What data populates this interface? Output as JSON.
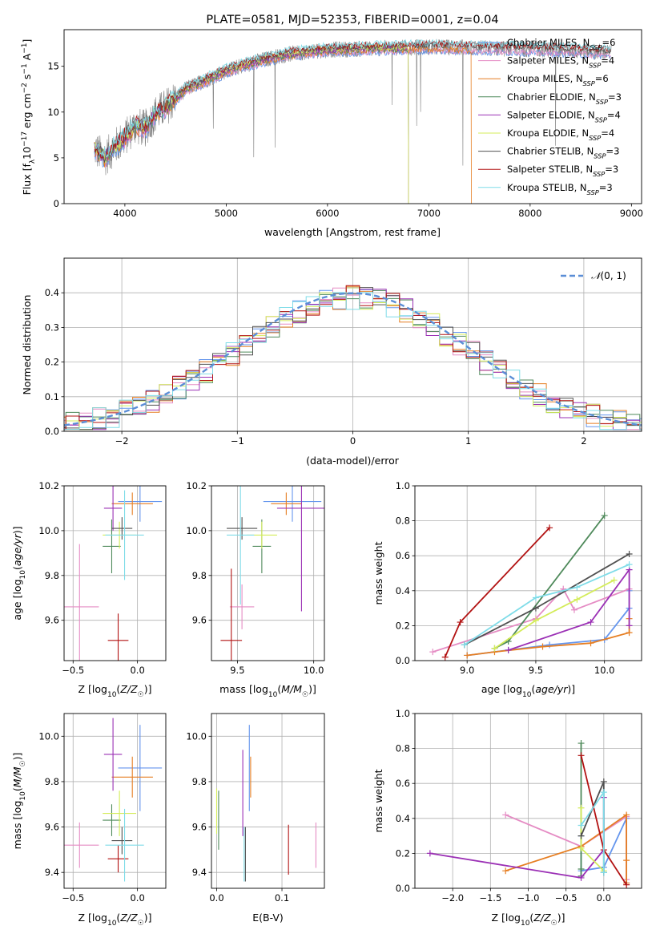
{
  "colors": {
    "chabrier_miles": "#6495ed",
    "salpeter_miles": "#e58cc4",
    "kroupa_miles": "#e67e22",
    "chabrier_elodie": "#4f8a5b",
    "salpeter_elodie": "#9b30b5",
    "kroupa_elodie": "#d4ec5a",
    "chabrier_stelib": "#505050",
    "salpeter_stelib": "#b21212",
    "kroupa_stelib": "#7fdce8",
    "normal": "#5b8ed6",
    "observed": "#808080"
  },
  "chart_data": [
    {
      "id": "spectrum",
      "type": "line",
      "title": "PLATE=0581, MJD=52353, FIBERID=0001, z=0.04",
      "xlabel": "wavelength [Angstrom, rest frame]",
      "ylabel": "Flux [f_λ10^-17 erg cm^-2 s^-1 A^-1]",
      "xlim": [
        3400,
        9100
      ],
      "ylim": [
        0,
        19
      ],
      "xticks": [
        "4000",
        "5000",
        "6000",
        "7000",
        "8000",
        "9000"
      ],
      "yticks": [
        "0",
        "5",
        "10",
        "15"
      ],
      "grid": false,
      "legend_position": "top-right",
      "legend": [
        "Chabrier MILES, N_SSP=6",
        "Salpeter MILES, N_SSP=4",
        "Kroupa MILES, N_SSP=6",
        "Chabrier ELODIE, N_SSP=3",
        "Salpeter ELODIE, N_SSP=4",
        "Kroupa ELODIE, N_SSP=4",
        "Chabrier STELIB, N_SSP=3",
        "Salpeter STELIB, N_SSP=3",
        "Kroupa STELIB, N_SSP=3"
      ],
      "series_keys": [
        "chabrier_miles",
        "salpeter_miles",
        "kroupa_miles",
        "chabrier_elodie",
        "salpeter_elodie",
        "kroupa_elodie",
        "chabrier_stelib",
        "salpeter_stelib",
        "kroupa_stelib"
      ],
      "continuum": {
        "x": [
          3700,
          3800,
          3900,
          4000,
          4100,
          4200,
          4300,
          4400,
          4500,
          4600,
          4800,
          5000,
          5200,
          5400,
          5600,
          5800,
          6000,
          6300,
          6600,
          7000,
          7500,
          8000,
          8500,
          8800
        ],
        "y": [
          6.0,
          5.0,
          6.2,
          7.2,
          8.5,
          8.2,
          9.8,
          10.5,
          11.5,
          12.5,
          13.5,
          14.5,
          15.2,
          15.8,
          16.3,
          16.6,
          16.8,
          16.9,
          17.0,
          17.1,
          17.0,
          16.9,
          16.7,
          16.5
        ]
      },
      "model_ranges": {
        "chabrier_miles": [
          3700,
          8800
        ],
        "salpeter_miles": [
          3700,
          8800
        ],
        "kroupa_miles": [
          3700,
          7420
        ],
        "chabrier_elodie": [
          3700,
          6800
        ],
        "salpeter_elodie": [
          3700,
          6800
        ],
        "kroupa_elodie": [
          3700,
          6800
        ],
        "chabrier_stelib": [
          3700,
          8800
        ],
        "salpeter_stelib": [
          3700,
          8800
        ],
        "kroupa_stelib": [
          3700,
          8800
        ]
      }
    },
    {
      "id": "residuals",
      "type": "histogram",
      "xlabel": "(data-model)/error",
      "ylabel": "Normed distribution",
      "xlim": [
        -2.5,
        2.5
      ],
      "ylim": [
        0,
        0.5
      ],
      "xticks": [
        "−2",
        "−1",
        "0",
        "1",
        "2"
      ],
      "yticks": [
        "0.0",
        "0.1",
        "0.2",
        "0.3",
        "0.4"
      ],
      "grid": true,
      "legend_position": "top-right",
      "legend": [
        "N(0,1)"
      ],
      "bins": 45,
      "reference": "normal distribution N(0,1)"
    },
    {
      "id": "age_vs_Z",
      "type": "scatter",
      "xlabel": "Z [log10(Z/Z☉)]",
      "ylabel": "age [log10(age/yr)]",
      "xlim": [
        -0.57,
        0.22
      ],
      "ylim": [
        9.42,
        10.2
      ],
      "xticks": [
        "−0.5",
        "0.0"
      ],
      "yticks": [
        "9.6",
        "9.8",
        "10.0",
        "10.2"
      ],
      "grid": true,
      "points": [
        {
          "key": "chabrier_miles",
          "x": 0.02,
          "y": 10.13,
          "xerr": 0.17,
          "yerr": 0.09
        },
        {
          "key": "salpeter_miles",
          "x": -0.45,
          "y": 9.66,
          "xerr": 0.15,
          "yerr": 0.28
        },
        {
          "key": "kroupa_miles",
          "x": -0.04,
          "y": 10.12,
          "xerr": 0.16,
          "yerr": 0.05
        },
        {
          "key": "chabrier_elodie",
          "x": -0.2,
          "y": 9.93,
          "xerr": 0.07,
          "yerr": 0.12
        },
        {
          "key": "salpeter_elodie",
          "x": -0.19,
          "y": 10.1,
          "xerr": 0.07,
          "yerr": 0.1
        },
        {
          "key": "kroupa_elodie",
          "x": -0.14,
          "y": 9.98,
          "xerr": 0.13,
          "yerr": 0.06
        },
        {
          "key": "chabrier_stelib",
          "x": -0.12,
          "y": 10.01,
          "xerr": 0.08,
          "yerr": 0.05
        },
        {
          "key": "salpeter_stelib",
          "x": -0.15,
          "y": 9.51,
          "xerr": 0.08,
          "yerr": 0.12
        },
        {
          "key": "kroupa_stelib",
          "x": -0.1,
          "y": 9.98,
          "xerr": 0.15,
          "yerr": 0.2
        }
      ]
    },
    {
      "id": "age_vs_mass",
      "type": "scatter",
      "xlabel": "mass [log10(M/M☉)]",
      "xlim": [
        9.33,
        10.07
      ],
      "ylim": [
        9.42,
        10.2
      ],
      "xticks": [
        "9.5",
        "10.0"
      ],
      "yticks": [
        "9.6",
        "9.8",
        "10.0",
        "10.2"
      ],
      "grid": true,
      "points": [
        {
          "key": "chabrier_miles",
          "x": 9.86,
          "y": 10.13,
          "xerr": 0.19,
          "yerr": 0.09
        },
        {
          "key": "salpeter_miles",
          "x": 9.53,
          "y": 9.66,
          "xerr": 0.08,
          "yerr": 0.1
        },
        {
          "key": "kroupa_miles",
          "x": 9.82,
          "y": 10.12,
          "xerr": 0.1,
          "yerr": 0.05
        },
        {
          "key": "chabrier_elodie",
          "x": 9.66,
          "y": 9.93,
          "xerr": 0.06,
          "yerr": 0.12
        },
        {
          "key": "salpeter_elodie",
          "x": 9.92,
          "y": 10.1,
          "xerr": 0.16,
          "yerr": 0.46
        },
        {
          "key": "kroupa_elodie",
          "x": 9.66,
          "y": 9.98,
          "xerr": 0.1,
          "yerr": 0.06
        },
        {
          "key": "chabrier_stelib",
          "x": 9.53,
          "y": 10.01,
          "xerr": 0.1,
          "yerr": 0.05
        },
        {
          "key": "salpeter_stelib",
          "x": 9.46,
          "y": 9.51,
          "xerr": 0.07,
          "yerr": 0.32
        },
        {
          "key": "kroupa_stelib",
          "x": 9.52,
          "y": 9.98,
          "xerr": 0.09,
          "yerr": 0.31
        }
      ]
    },
    {
      "id": "mass_vs_Z",
      "type": "scatter",
      "xlabel": "Z [log10(Z/Z☉)]",
      "ylabel": "mass [log10(M/M☉)]",
      "xlim": [
        -0.57,
        0.22
      ],
      "ylim": [
        9.33,
        10.1
      ],
      "xticks": [
        "−0.5",
        "0.0"
      ],
      "yticks": [
        "9.4",
        "9.6",
        "9.8",
        "10.0"
      ],
      "grid": true,
      "points": [
        {
          "key": "chabrier_miles",
          "x": 0.02,
          "y": 9.86,
          "xerr": 0.17,
          "yerr": 0.19
        },
        {
          "key": "salpeter_miles",
          "x": -0.45,
          "y": 9.52,
          "xerr": 0.15,
          "yerr": 0.1
        },
        {
          "key": "kroupa_miles",
          "x": -0.04,
          "y": 9.82,
          "xerr": 0.16,
          "yerr": 0.09
        },
        {
          "key": "chabrier_elodie",
          "x": -0.2,
          "y": 9.63,
          "xerr": 0.07,
          "yerr": 0.07
        },
        {
          "key": "salpeter_elodie",
          "x": -0.19,
          "y": 9.92,
          "xerr": 0.07,
          "yerr": 0.16
        },
        {
          "key": "kroupa_elodie",
          "x": -0.14,
          "y": 9.66,
          "xerr": 0.13,
          "yerr": 0.1
        },
        {
          "key": "chabrier_stelib",
          "x": -0.12,
          "y": 9.54,
          "xerr": 0.08,
          "yerr": 0.06
        },
        {
          "key": "salpeter_stelib",
          "x": -0.15,
          "y": 9.46,
          "xerr": 0.08,
          "yerr": 0.06
        },
        {
          "key": "kroupa_stelib",
          "x": -0.1,
          "y": 9.52,
          "xerr": 0.15,
          "yerr": 0.16
        }
      ]
    },
    {
      "id": "mass_vs_ebv",
      "type": "scatter",
      "xlabel": "E(B-V)",
      "xlim": [
        -0.008,
        0.165
      ],
      "ylim": [
        9.33,
        10.1
      ],
      "xticks": [
        "0.0",
        "0.1"
      ],
      "yticks": [
        "9.4",
        "9.6",
        "9.8",
        "10.0"
      ],
      "grid": true,
      "points": [
        {
          "key": "chabrier_miles",
          "x": 0.05,
          "y": 9.86,
          "xerr": 0,
          "yerr": 0.19
        },
        {
          "key": "salpeter_miles",
          "x": 0.152,
          "y": 9.52,
          "xerr": 0,
          "yerr": 0.1
        },
        {
          "key": "kroupa_miles",
          "x": 0.052,
          "y": 9.82,
          "xerr": 0,
          "yerr": 0.09
        },
        {
          "key": "chabrier_elodie",
          "x": 0.003,
          "y": 9.63,
          "xerr": 0,
          "yerr": 0.13
        },
        {
          "key": "salpeter_elodie",
          "x": 0.04,
          "y": 9.75,
          "xerr": 0,
          "yerr": 0.19
        },
        {
          "key": "kroupa_elodie",
          "x": 0.0,
          "y": 9.67,
          "xerr": 0,
          "yerr": 0.1
        },
        {
          "key": "chabrier_stelib",
          "x": 0.044,
          "y": 9.48,
          "xerr": 0,
          "yerr": 0.12
        },
        {
          "key": "salpeter_stelib",
          "x": 0.11,
          "y": 9.5,
          "xerr": 0,
          "yerr": 0.11
        },
        {
          "key": "kroupa_stelib",
          "x": 0.042,
          "y": 9.48,
          "xerr": 0,
          "yerr": 0.12
        }
      ]
    },
    {
      "id": "mass_weight_vs_age",
      "type": "line",
      "xlabel": "age [log10(age/yr)]",
      "ylabel": "mass weight",
      "xlim": [
        8.62,
        10.27
      ],
      "ylim": [
        0,
        1.0
      ],
      "xticks": [
        "9.0",
        "9.5",
        "10.0"
      ],
      "yticks": [
        "0.0",
        "0.2",
        "0.4",
        "0.6",
        "0.8",
        "1.0"
      ],
      "grid": true,
      "series": [
        {
          "key": "chabrier_miles",
          "x": [
            9.0,
            9.3,
            9.6,
            10.0,
            10.18,
            10.18
          ],
          "y": [
            0.03,
            0.06,
            0.09,
            0.12,
            0.3,
            0.4
          ]
        },
        {
          "key": "salpeter_miles",
          "x": [
            8.75,
            9.5,
            9.7,
            9.78,
            10.18
          ],
          "y": [
            0.05,
            0.24,
            0.41,
            0.29,
            0.41
          ]
        },
        {
          "key": "kroupa_miles",
          "x": [
            9.0,
            9.2,
            9.55,
            9.9,
            10.18,
            10.18
          ],
          "y": [
            0.03,
            0.05,
            0.08,
            0.1,
            0.16,
            0.24
          ]
        },
        {
          "key": "chabrier_elodie",
          "x": [
            9.2,
            9.3,
            10.0
          ],
          "y": [
            0.07,
            0.11,
            0.83
          ]
        },
        {
          "key": "salpeter_elodie",
          "x": [
            9.3,
            9.9,
            10.18,
            10.18
          ],
          "y": [
            0.06,
            0.22,
            0.52,
            0.2
          ]
        },
        {
          "key": "kroupa_elodie",
          "x": [
            9.2,
            9.5,
            9.8,
            10.07
          ],
          "y": [
            0.07,
            0.23,
            0.35,
            0.46
          ]
        },
        {
          "key": "chabrier_stelib",
          "x": [
            8.98,
            9.5,
            10.18
          ],
          "y": [
            0.09,
            0.3,
            0.61
          ]
        },
        {
          "key": "salpeter_stelib",
          "x": [
            8.84,
            8.95,
            9.6
          ],
          "y": [
            0.02,
            0.22,
            0.76
          ]
        },
        {
          "key": "kroupa_stelib",
          "x": [
            8.98,
            9.5,
            9.8,
            10.18
          ],
          "y": [
            0.09,
            0.36,
            0.42,
            0.55
          ]
        }
      ]
    },
    {
      "id": "mass_weight_vs_Z",
      "type": "line",
      "xlabel": "Z [log10(Z/Z☉)]",
      "ylabel": "mass weight",
      "xlim": [
        -2.5,
        0.5
      ],
      "ylim": [
        0,
        1.0
      ],
      "xticks": [
        "−2.0",
        "−1.5",
        "−1.0",
        "−0.5",
        "0.0"
      ],
      "yticks": [
        "0.0",
        "0.2",
        "0.4",
        "0.6",
        "0.8",
        "1.0"
      ],
      "grid": true,
      "series": [
        {
          "key": "chabrier_miles",
          "x": [
            -0.3,
            -0.3,
            0.0,
            0.3,
            0.3
          ],
          "y": [
            0.3,
            0.1,
            0.12,
            0.4,
            0.03
          ]
        },
        {
          "key": "salpeter_miles",
          "x": [
            -1.3,
            -0.3,
            0.3,
            0.3
          ],
          "y": [
            0.42,
            0.24,
            0.41,
            0.05
          ]
        },
        {
          "key": "kroupa_miles",
          "x": [
            -1.3,
            -0.3,
            0.3,
            0.3,
            0.3
          ],
          "y": [
            0.1,
            0.24,
            0.42,
            0.16,
            0.03
          ]
        },
        {
          "key": "chabrier_elodie",
          "x": [
            -0.3,
            -0.3,
            -0.3
          ],
          "y": [
            0.83,
            0.07,
            0.11
          ]
        },
        {
          "key": "salpeter_elodie",
          "x": [
            -2.3,
            -0.3,
            0.0,
            0.0
          ],
          "y": [
            0.2,
            0.06,
            0.22,
            0.52
          ]
        },
        {
          "key": "kroupa_elodie",
          "x": [
            -0.3,
            -0.3,
            0.0
          ],
          "y": [
            0.46,
            0.23,
            0.1
          ]
        },
        {
          "key": "chabrier_stelib",
          "x": [
            -0.3,
            0.0,
            0.0
          ],
          "y": [
            0.3,
            0.61,
            0.09
          ]
        },
        {
          "key": "salpeter_stelib",
          "x": [
            -0.3,
            0.0,
            0.3
          ],
          "y": [
            0.76,
            0.22,
            0.02
          ]
        },
        {
          "key": "kroupa_stelib",
          "x": [
            -0.3,
            0.0,
            0.0
          ],
          "y": [
            0.36,
            0.55,
            0.09
          ]
        }
      ]
    }
  ]
}
